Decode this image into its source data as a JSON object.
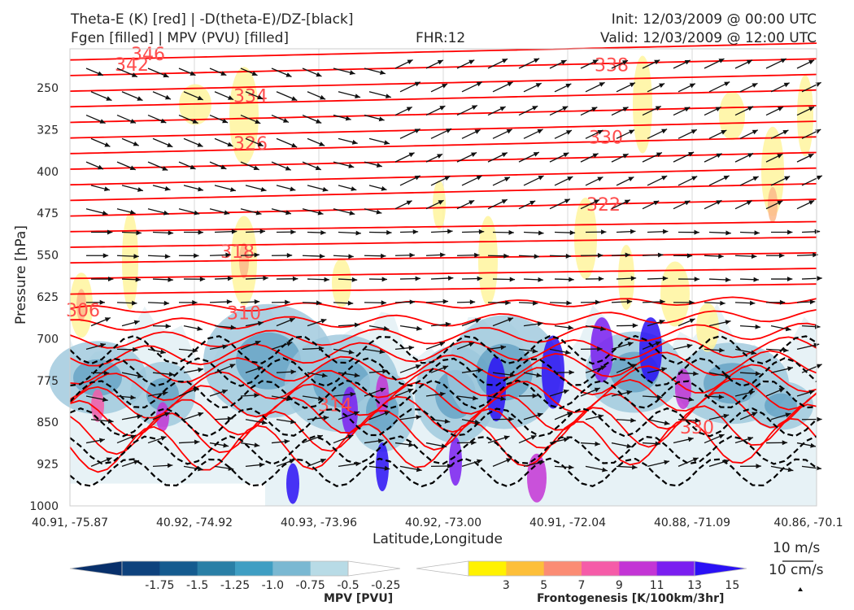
{
  "header": {
    "title_left_1": "Theta-E (K) [red] | -D(theta-E)/DZ-[black]",
    "title_left_2": "Fgen [filled] | MPV (PVU) [filled]",
    "title_center": "FHR:12",
    "title_right_1": "Init: 12/03/2009 @ 00:00 UTC",
    "title_right_2": "Valid: 12/03/2009 @ 12:00 UTC"
  },
  "chart_data": {
    "type": "cross-section",
    "xlabel": "Latitude,Longitude",
    "ylabel": "Pressure [hPa]",
    "x_ticks": [
      "40.91, -75.87",
      "40.92, -74.92",
      "40.93, -73.96",
      "40.92, -73.00",
      "40.91, -72.04",
      "40.88, -71.09",
      "40.86, -70.1"
    ],
    "y_ticks": [
      "250",
      "325",
      "400",
      "475",
      "550",
      "625",
      "700",
      "775",
      "850",
      "925",
      "1000"
    ],
    "y_values": [
      250,
      325,
      400,
      475,
      550,
      625,
      700,
      775,
      850,
      925,
      1000
    ],
    "ylim": [
      1000,
      180
    ],
    "y_inverted": true,
    "theta_e_labels": [
      "346",
      "342",
      "334",
      "338",
      "326",
      "330",
      "322",
      "318",
      "310",
      "306",
      "330",
      "314"
    ],
    "mpv_colorbar": {
      "label": "MPV [PVU]",
      "ticks": [
        "-1.75",
        "-1.5",
        "-1.25",
        "-1.0",
        "-0.75",
        "-0.5",
        "-0.25"
      ],
      "colors": [
        "#08306b",
        "#0e427d",
        "#155b8f",
        "#2a7fa6",
        "#3f9ec3",
        "#7ab8d2",
        "#b8dbe6",
        "#ffffff"
      ]
    },
    "fgen_colorbar": {
      "label": "Frontogenesis [K/100km/3hr]",
      "ticks": [
        "3",
        "5",
        "7",
        "9",
        "11",
        "13",
        "15"
      ],
      "colors": [
        "#ffffff",
        "#fff200",
        "#fdbf3a",
        "#fb8c74",
        "#f55ca8",
        "#c335d5",
        "#7a1ef0",
        "#2a11f5"
      ]
    },
    "wind_key": {
      "u_label": "10 m/s",
      "w_label": "10 cm/s"
    }
  }
}
